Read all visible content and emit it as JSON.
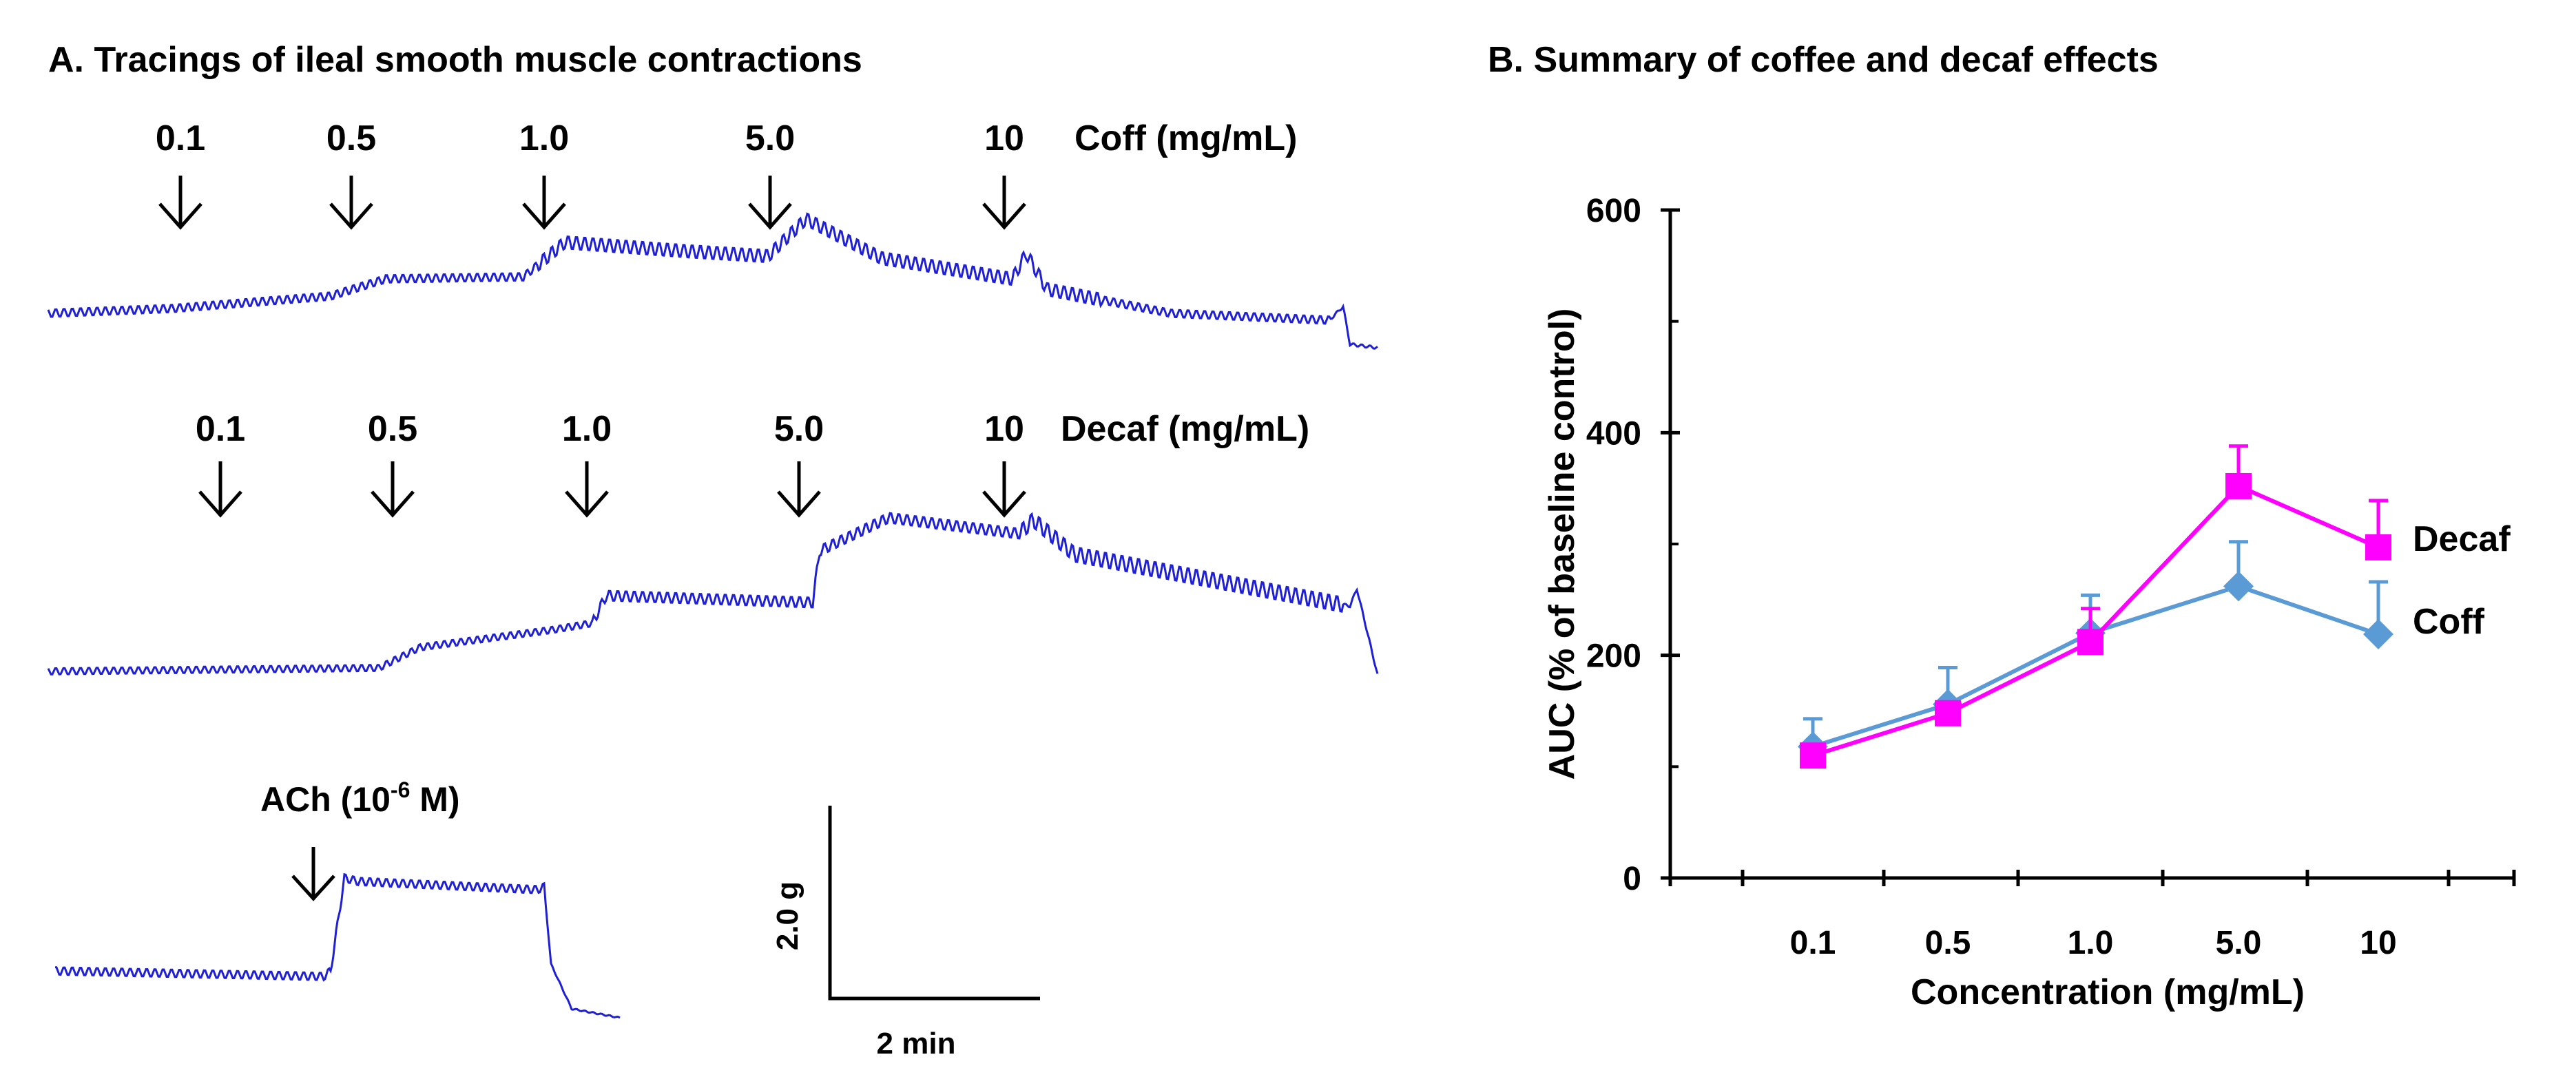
{
  "panel_a": {
    "title": "A. Tracings of ileal smooth muscle contractions",
    "coff": {
      "label": "Coff (mg/mL)",
      "doses": [
        "0.1",
        "0.5",
        "1.0",
        "5.0",
        "10"
      ]
    },
    "decaf": {
      "label": "Decaf (mg/mL)",
      "doses": [
        "0.1",
        "0.5",
        "1.0",
        "5.0",
        "10"
      ]
    },
    "ach": {
      "label_prefix": "ACh (10",
      "label_exponent": "-6",
      "label_suffix": " M)"
    },
    "scale_bar": {
      "y_label": "2.0 g",
      "x_label": "2 min"
    }
  },
  "panel_b": {
    "title": "B. Summary of coffee and decaf effects"
  },
  "colors": {
    "trace": "#1f1fd6",
    "coff": "#5b9bd5",
    "decaf": "#ff00ff",
    "text": "#000000"
  },
  "chart_data": {
    "type": "line",
    "title": "B. Summary of coffee and decaf effects",
    "xlabel": "Concentration (mg/mL)",
    "ylabel": "AUC (% of baseline control)",
    "categories": [
      "0.1",
      "0.5",
      "1.0",
      "5.0",
      "10"
    ],
    "ylim": [
      0,
      600
    ],
    "yticks": [
      "0",
      "200",
      "400",
      "600"
    ],
    "grid": false,
    "legend": "inline labels at right end of lines",
    "series": [
      {
        "name": "Coff",
        "marker": "diamond",
        "color": "#5b9bd5",
        "values": [
          118,
          156,
          220,
          262,
          219
        ],
        "errors": [
          25,
          33,
          34,
          40,
          47
        ]
      },
      {
        "name": "Decaf",
        "marker": "square",
        "color": "#ff00ff",
        "values": [
          110,
          148,
          212,
          352,
          297
        ],
        "errors": [
          0,
          0,
          30,
          36,
          42
        ]
      }
    ]
  }
}
